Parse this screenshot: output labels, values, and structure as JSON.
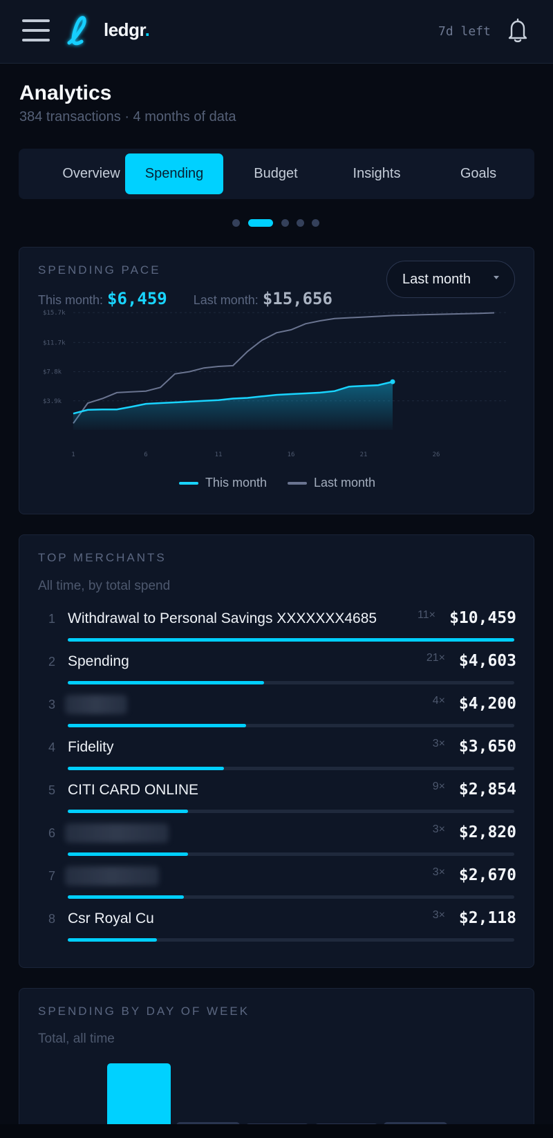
{
  "header": {
    "logo_text": "ledgr",
    "logo_dot": ".",
    "trial": "7d left",
    "icons": {
      "menu": "hamburger-icon",
      "logo": "ledgr-logo-icon",
      "bell": "bell-icon"
    }
  },
  "page": {
    "title": "Analytics",
    "subtitle": "384 transactions · 4 months of data"
  },
  "tabs": [
    {
      "label": "Overview",
      "active": false
    },
    {
      "label": "Spending",
      "active": true
    },
    {
      "label": "Budget",
      "active": false
    },
    {
      "label": "Insights",
      "active": false
    },
    {
      "label": "Goals",
      "active": false
    }
  ],
  "pager": {
    "count": 5,
    "active": 1
  },
  "pace": {
    "label": "SPENDING PACE",
    "this_label": "This month:",
    "this_value": "$6,459",
    "last_label": "Last month:",
    "last_value": "$15,656",
    "period": "Last month",
    "colors": {
      "this": "#19d4ff",
      "last": "#6a7490"
    }
  },
  "chart_data": {
    "type": "line",
    "x_ticks": [
      "1",
      "6",
      "11",
      "16",
      "21",
      "26"
    ],
    "y_ticks": [
      "$3.9k",
      "$7.8k",
      "$11.7k",
      "$15.7k"
    ],
    "ylim": [
      0,
      17000
    ],
    "xlim": [
      1,
      31
    ],
    "legend": [
      "This month",
      "Last month"
    ],
    "grid": true,
    "series": [
      {
        "name": "This month",
        "x": [
          1,
          2,
          3,
          4,
          5,
          6,
          7,
          8,
          9,
          10,
          11,
          12,
          13,
          14,
          15,
          16,
          17,
          18,
          19,
          20,
          21,
          22,
          23
        ],
        "y": [
          2200,
          2700,
          2750,
          2750,
          3100,
          3500,
          3600,
          3700,
          3800,
          3900,
          4000,
          4200,
          4300,
          4500,
          4700,
          4800,
          4900,
          5000,
          5200,
          5800,
          5900,
          6000,
          6459
        ]
      },
      {
        "name": "Last month",
        "x": [
          1,
          2,
          3,
          4,
          5,
          6,
          7,
          8,
          9,
          10,
          11,
          12,
          13,
          14,
          15,
          16,
          17,
          18,
          19,
          20,
          21,
          22,
          23,
          24,
          25,
          26,
          27,
          28,
          29,
          30
        ],
        "y": [
          900,
          3600,
          4200,
          5000,
          5100,
          5200,
          5700,
          7500,
          7800,
          8300,
          8500,
          8600,
          10500,
          12000,
          13000,
          13400,
          14200,
          14600,
          14900,
          15000,
          15100,
          15200,
          15300,
          15350,
          15400,
          15450,
          15500,
          15550,
          15600,
          15656
        ]
      }
    ]
  },
  "merchants": {
    "label": "TOP MERCHANTS",
    "note": "All time, by total spend",
    "rows": [
      {
        "rank": "1",
        "name": "Withdrawal to Personal Savings XXXXXXX4685",
        "count": "11×",
        "amount": "$10,459",
        "share": 1.0
      },
      {
        "rank": "2",
        "name": "Spending",
        "count": "21×",
        "amount": "$4,603",
        "share": 0.44
      },
      {
        "rank": "3",
        "name": "",
        "count": "4×",
        "amount": "$4,200",
        "share": 0.4
      },
      {
        "rank": "4",
        "name": "Fidelity",
        "count": "3×",
        "amount": "$3,650",
        "share": 0.35
      },
      {
        "rank": "5",
        "name": "CITI CARD ONLINE",
        "count": "9×",
        "amount": "$2,854",
        "share": 0.27
      },
      {
        "rank": "6",
        "name": "",
        "count": "3×",
        "amount": "$2,820",
        "share": 0.27
      },
      {
        "rank": "7",
        "name": "",
        "count": "3×",
        "amount": "$2,670",
        "share": 0.26
      },
      {
        "rank": "8",
        "name": "Csr Royal Cu",
        "count": "3×",
        "amount": "$2,118",
        "share": 0.2
      }
    ]
  },
  "dow": {
    "label": "SPENDING BY DAY OF WEEK",
    "note": "Total, all time",
    "bars": [
      {
        "level": 1.0,
        "color": "#00d1ff"
      },
      {
        "level": 0.08,
        "color": "#2a3550"
      },
      {
        "level": 0.05,
        "color": "#2a3550"
      },
      {
        "level": 0.05,
        "color": "#2a3550"
      },
      {
        "level": 0.08,
        "color": "#2a3550"
      }
    ]
  }
}
